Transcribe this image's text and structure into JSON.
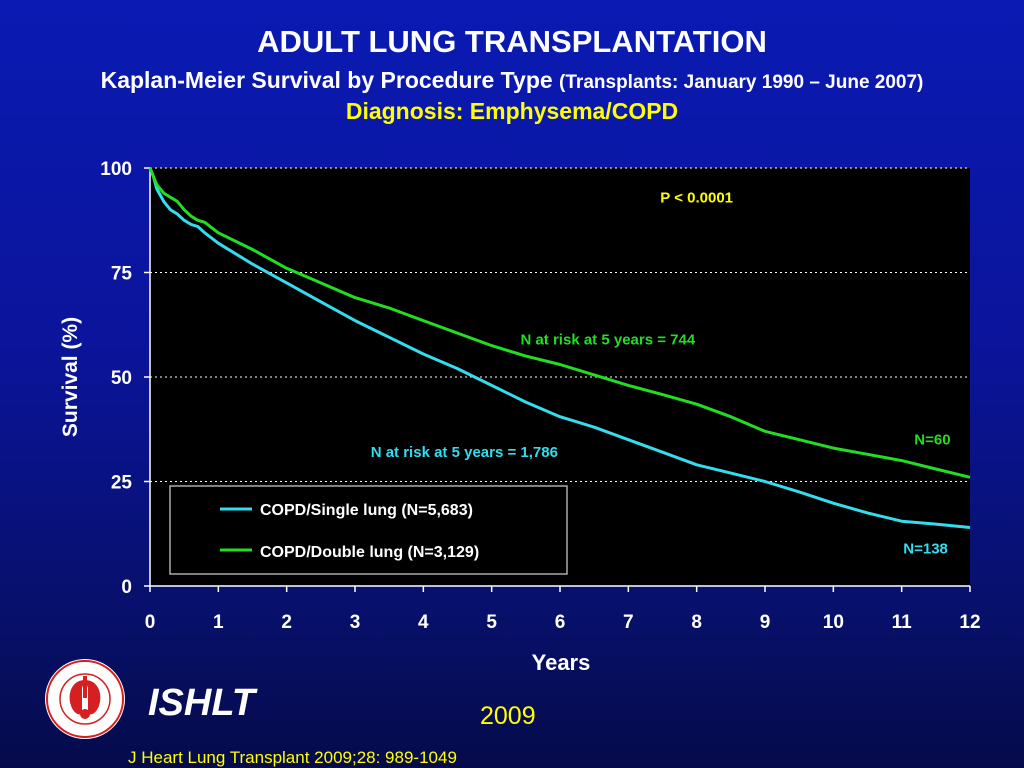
{
  "slide": {
    "title": "ADULT LUNG TRANSPLANTATION",
    "subtitle_main": "Kaplan-Meier Survival by Procedure Type",
    "subtitle_detail": "(Transplants: January 1990 – June 2007)",
    "diagnosis": "Diagnosis: Emphysema/COPD",
    "org_name": "ISHLT",
    "year": "2009",
    "citation": "J Heart Lung Transplant 2009;28: 989-1049",
    "logo_text": "INTERNATIONAL SOCIETY FOR HEART & LUNG TRANSPLANTATION"
  },
  "colors": {
    "background": "#0b149a",
    "plot_background": "#000000",
    "single_lung": "#33ddee",
    "double_lung": "#22dd22",
    "title": "#ffffff",
    "highlight": "#ffff00",
    "logo": "#d42020"
  },
  "chart_data": {
    "type": "line",
    "title": "",
    "xlabel": "Years",
    "ylabel": "Survival (%)",
    "xlim": [
      0,
      12
    ],
    "ylim": [
      0,
      100
    ],
    "x_ticks": [
      "0",
      "1",
      "2",
      "3",
      "4",
      "5",
      "6",
      "7",
      "8",
      "9",
      "10",
      "11",
      "12"
    ],
    "y_ticks": [
      "0",
      "25",
      "50",
      "75",
      "100"
    ],
    "grid": "horizontal dotted",
    "legend_position": "bottom-left",
    "series": [
      {
        "name": "COPD/Single lung (N=5,683)",
        "color": "#33ddee",
        "points": [
          [
            0,
            100
          ],
          [
            0.05,
            98
          ],
          [
            0.1,
            95
          ],
          [
            0.2,
            92
          ],
          [
            0.3,
            90
          ],
          [
            0.4,
            89
          ],
          [
            0.5,
            87.5
          ],
          [
            0.6,
            86.5
          ],
          [
            0.7,
            86
          ],
          [
            0.8,
            84.5
          ],
          [
            1,
            82
          ],
          [
            1.5,
            77
          ],
          [
            2,
            72.5
          ],
          [
            2.5,
            68
          ],
          [
            3,
            63.5
          ],
          [
            3.5,
            59.5
          ],
          [
            4,
            55.5
          ],
          [
            4.5,
            52
          ],
          [
            5,
            48
          ],
          [
            5.5,
            44
          ],
          [
            6,
            40.5
          ],
          [
            6.5,
            38
          ],
          [
            7,
            35
          ],
          [
            7.5,
            32
          ],
          [
            8,
            29
          ],
          [
            8.5,
            27
          ],
          [
            9,
            25
          ],
          [
            9.5,
            22.5
          ],
          [
            10,
            19.8
          ],
          [
            10.5,
            17.5
          ],
          [
            11,
            15.5
          ],
          [
            11.5,
            14.8
          ],
          [
            12,
            14
          ]
        ]
      },
      {
        "name": "COPD/Double lung (N=3,129)",
        "color": "#22dd22",
        "points": [
          [
            0,
            100
          ],
          [
            0.05,
            98
          ],
          [
            0.1,
            96
          ],
          [
            0.2,
            94
          ],
          [
            0.3,
            93
          ],
          [
            0.4,
            92
          ],
          [
            0.5,
            90
          ],
          [
            0.6,
            88.5
          ],
          [
            0.7,
            87.5
          ],
          [
            0.8,
            87
          ],
          [
            1,
            84.5
          ],
          [
            1.5,
            80.5
          ],
          [
            2,
            76
          ],
          [
            2.5,
            72.5
          ],
          [
            3,
            69
          ],
          [
            3.5,
            66.5
          ],
          [
            4,
            63.5
          ],
          [
            4.5,
            60.5
          ],
          [
            5,
            57.5
          ],
          [
            5.5,
            55
          ],
          [
            6,
            53
          ],
          [
            6.5,
            50.5
          ],
          [
            7,
            48
          ],
          [
            7.5,
            45.8
          ],
          [
            8,
            43.5
          ],
          [
            8.5,
            40.5
          ],
          [
            9,
            37
          ],
          [
            9.5,
            35
          ],
          [
            10,
            33
          ],
          [
            10.5,
            31.5
          ],
          [
            11,
            30
          ],
          [
            11.5,
            28
          ],
          [
            12,
            26
          ]
        ]
      }
    ],
    "annotations": [
      {
        "text": "P < 0.0001",
        "x": 8,
        "y": 93,
        "color": "#ffff00"
      },
      {
        "text": "N at risk at 5 years = 744",
        "x": 6.7,
        "y": 59,
        "color": "#22dd22"
      },
      {
        "text": "N at risk at 5 years = 1,786",
        "x": 4.6,
        "y": 32,
        "color": "#33ddee"
      },
      {
        "text": "N=60",
        "x": 11.45,
        "y": 35,
        "color": "#22dd22"
      },
      {
        "text": "N=138",
        "x": 11.35,
        "y": 9,
        "color": "#33ddee"
      }
    ]
  }
}
